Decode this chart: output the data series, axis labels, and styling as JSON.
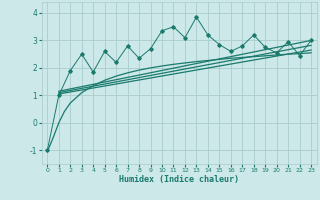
{
  "title": "",
  "xlabel": "Humidex (Indice chaleur)",
  "ylabel": "",
  "bg_color": "#cce8e8",
  "grid_color": "#aacccc",
  "line_color": "#1a7a6e",
  "xlim": [
    -0.5,
    23.5
  ],
  "ylim": [
    -1.5,
    4.4
  ],
  "xticks": [
    0,
    1,
    2,
    3,
    4,
    5,
    6,
    7,
    8,
    9,
    10,
    11,
    12,
    13,
    14,
    15,
    16,
    17,
    18,
    19,
    20,
    21,
    22,
    23
  ],
  "yticks": [
    -1,
    0,
    1,
    2,
    3,
    4
  ],
  "jagged_x": [
    0,
    1,
    2,
    3,
    4,
    5,
    6,
    7,
    8,
    9,
    10,
    11,
    12,
    13,
    14,
    15,
    16,
    17,
    18,
    19,
    20,
    21,
    22,
    23
  ],
  "jagged_y": [
    -1.0,
    1.0,
    1.9,
    2.5,
    1.85,
    2.6,
    2.2,
    2.8,
    2.35,
    2.7,
    3.35,
    3.5,
    3.1,
    3.85,
    3.2,
    2.85,
    2.6,
    2.8,
    3.2,
    2.75,
    2.55,
    2.95,
    2.45,
    3.0
  ],
  "line1_x": [
    1,
    23
  ],
  "line1_y": [
    1.05,
    2.65
  ],
  "line2_x": [
    1,
    23
  ],
  "line2_y": [
    1.1,
    2.82
  ],
  "line3_x": [
    1,
    23
  ],
  "line3_y": [
    1.15,
    3.0
  ],
  "smooth_curve_x": [
    0,
    0.5,
    1.0,
    1.5,
    2,
    3,
    4,
    5,
    6,
    7,
    8,
    9,
    10,
    11,
    12,
    13,
    14,
    15,
    16,
    17,
    18,
    19,
    20,
    21,
    22,
    23
  ],
  "smooth_curve_y": [
    -1.05,
    -0.55,
    0.0,
    0.42,
    0.72,
    1.1,
    1.35,
    1.55,
    1.7,
    1.82,
    1.92,
    2.0,
    2.07,
    2.13,
    2.18,
    2.23,
    2.27,
    2.31,
    2.35,
    2.38,
    2.41,
    2.44,
    2.47,
    2.5,
    2.52,
    2.55
  ]
}
